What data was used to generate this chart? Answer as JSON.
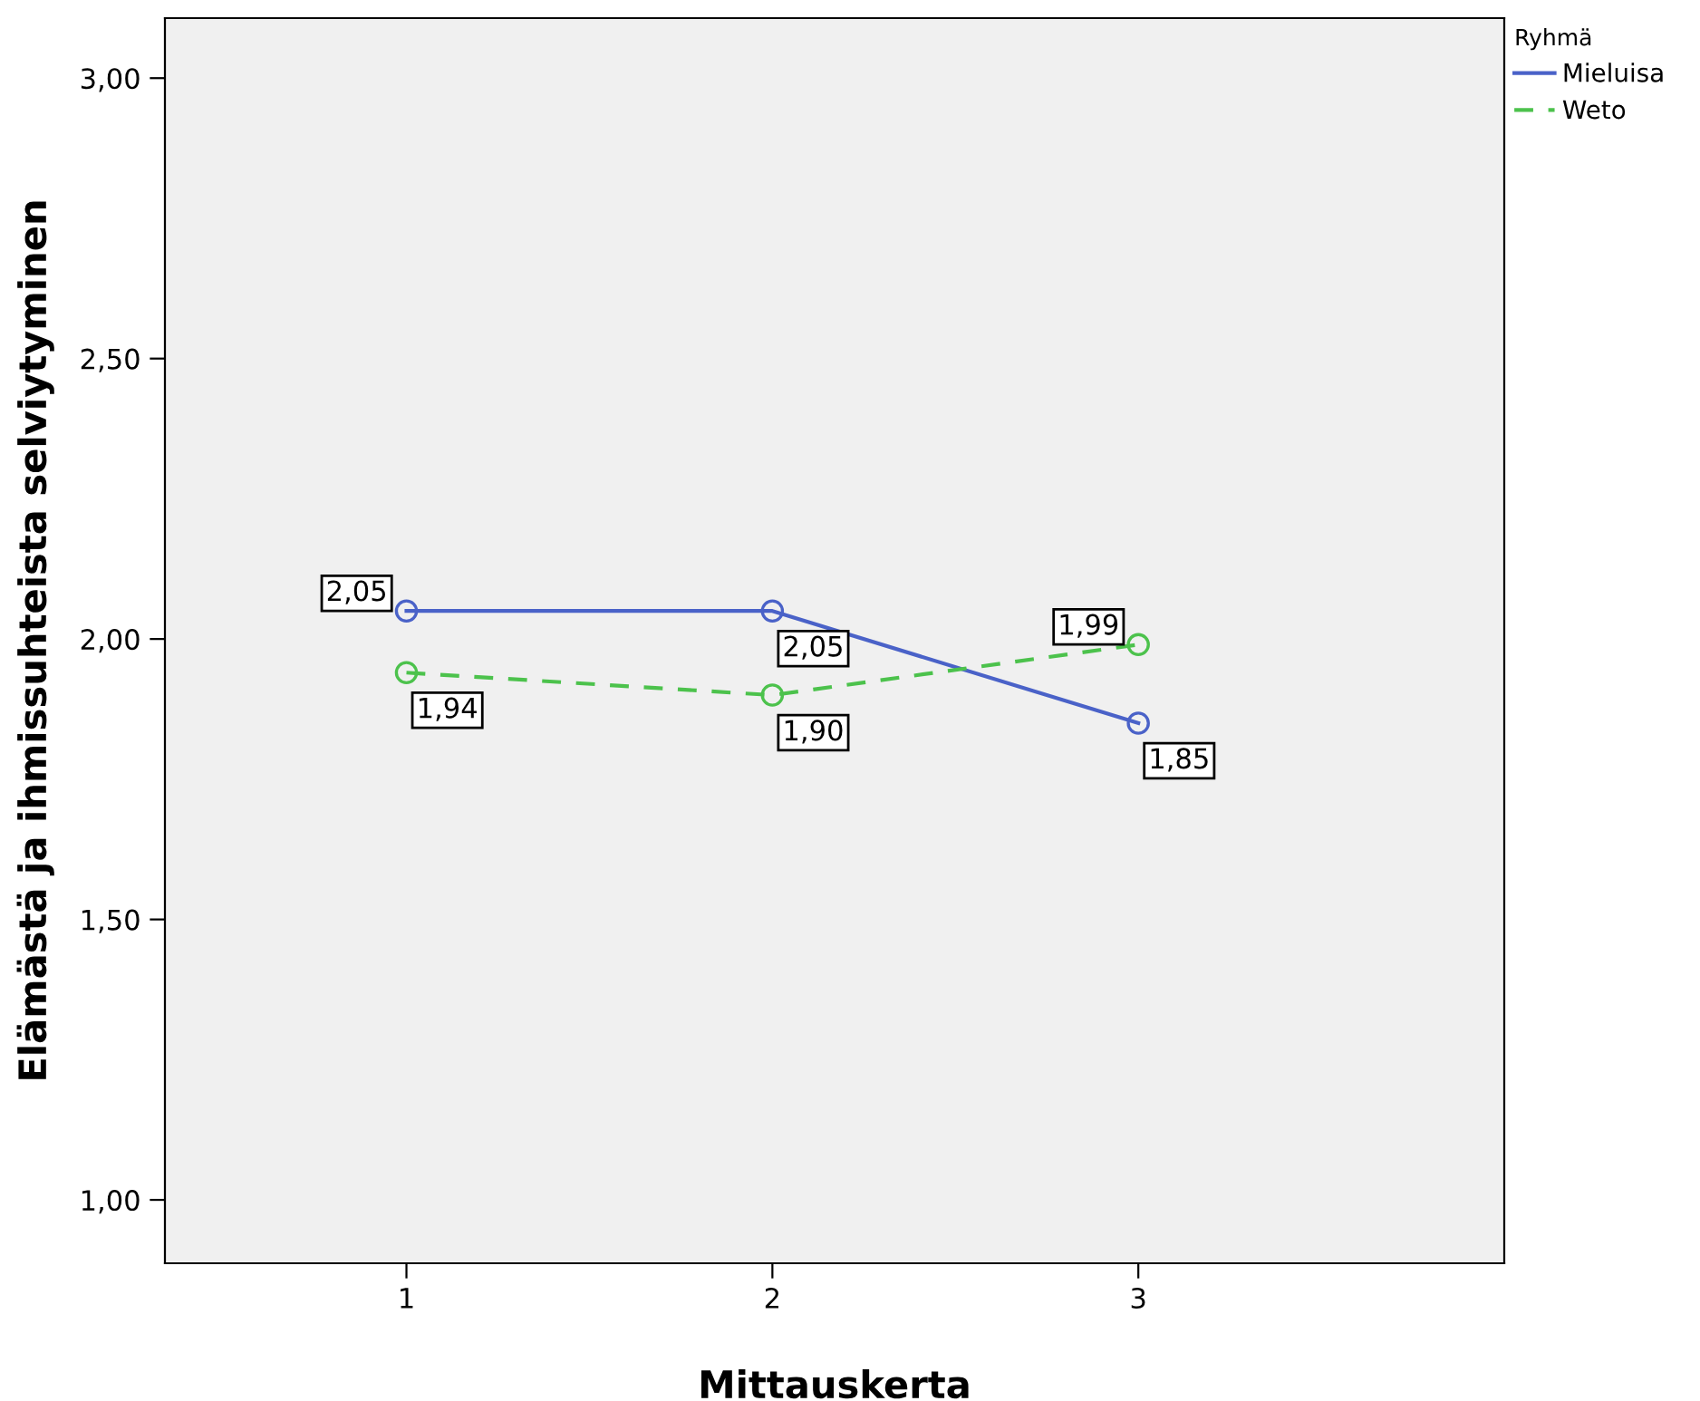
{
  "chart_data": {
    "type": "line",
    "xlabel": "Mittauskerta",
    "ylabel": "Elämästä ja ihmissuhteista selviytyminen",
    "legend_title": "Ryhmä",
    "legend": "top right",
    "marker": "circle",
    "grid": false,
    "x": [
      1,
      2,
      3
    ],
    "xlim": [
      0.34,
      4.0
    ],
    "xticks": [
      1,
      2,
      3
    ],
    "ylim": [
      0.887,
      3.107
    ],
    "yticks": [
      {
        "value": 1.0,
        "label": "1,00"
      },
      {
        "value": 1.5,
        "label": "1,50"
      },
      {
        "value": 2.0,
        "label": "2,00"
      },
      {
        "value": 2.5,
        "label": "2,50"
      },
      {
        "value": 3.0,
        "label": "3,00"
      }
    ],
    "series": [
      {
        "name": "Mieluisa",
        "color": "#4a62c8",
        "line_style": "solid",
        "values": [
          2.05,
          2.05,
          1.85
        ],
        "value_labels": [
          "2,05",
          "2,05",
          "1,85"
        ]
      },
      {
        "name": "Weto",
        "color": "#4cc24c",
        "line_style": "dashed",
        "values": [
          1.94,
          1.9,
          1.99
        ],
        "value_labels": [
          "1,94",
          "1,90",
          "1,99"
        ]
      }
    ]
  }
}
